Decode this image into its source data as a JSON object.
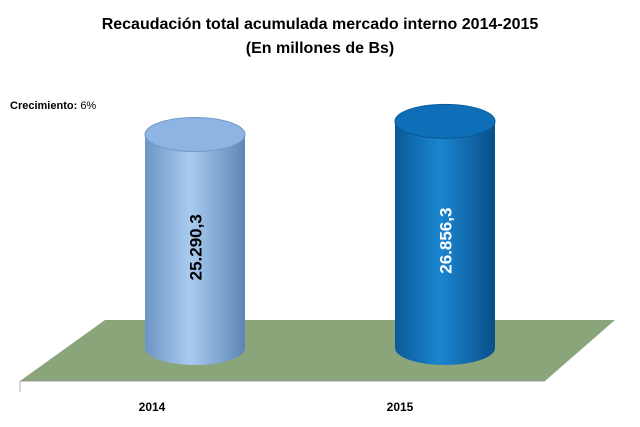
{
  "chart_data": {
    "type": "bar",
    "title": "Recaudación total acumulada mercado interno 2014-2015",
    "subtitle": "(En millones de Bs)",
    "categories": [
      "2014",
      "2015"
    ],
    "values": [
      25290.3,
      26856.3
    ],
    "value_labels": [
      "25.290,3",
      "26.856,3"
    ],
    "bar_colors": [
      "#8db4e2",
      "#0e6fb8"
    ],
    "floor_color": "#8aa57a",
    "annotation": {
      "label": "Crecimiento:",
      "value": "6%"
    },
    "style": "3d-cylinder",
    "grid": false
  }
}
